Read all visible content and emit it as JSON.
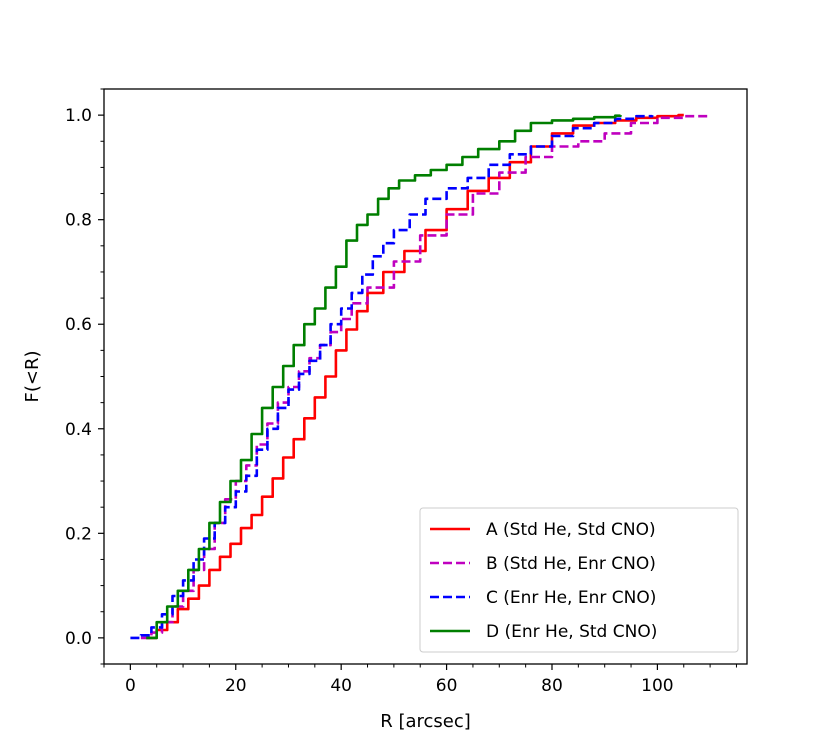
{
  "chart_data": {
    "type": "line",
    "title": "",
    "xlabel": "R [arcsec]",
    "ylabel": "F(<R)",
    "xlim": [
      -5,
      117
    ],
    "ylim": [
      -0.05,
      1.05
    ],
    "xticks": [
      0,
      20,
      40,
      60,
      80,
      100
    ],
    "yticks": [
      0.0,
      0.2,
      0.4,
      0.6,
      0.8,
      1.0
    ],
    "xtick_labels": [
      "0",
      "20",
      "40",
      "60",
      "80",
      "100"
    ],
    "ytick_labels": [
      "0.0",
      "0.2",
      "0.4",
      "0.6",
      "0.8",
      "1.0"
    ],
    "x_minor_step": 5,
    "y_minor_step": 0.05,
    "grid": false,
    "legend_position": "lower-right",
    "series": [
      {
        "name": "A (Std He, Std CNO)",
        "color": "#ff0000",
        "dash": "solid",
        "x": [
          3,
          5,
          7,
          9,
          11,
          13,
          15,
          17,
          19,
          21,
          23,
          25,
          27,
          29,
          31,
          33,
          35,
          37,
          39,
          41,
          43,
          45,
          48,
          52,
          56,
          60,
          64,
          68,
          72,
          76,
          80,
          84,
          88,
          92,
          96,
          100,
          104,
          105
        ],
        "y": [
          0.0,
          0.015,
          0.03,
          0.055,
          0.075,
          0.1,
          0.13,
          0.155,
          0.18,
          0.21,
          0.235,
          0.27,
          0.305,
          0.345,
          0.38,
          0.42,
          0.46,
          0.5,
          0.55,
          0.59,
          0.625,
          0.66,
          0.7,
          0.74,
          0.78,
          0.82,
          0.855,
          0.88,
          0.91,
          0.94,
          0.965,
          0.98,
          0.985,
          0.99,
          0.995,
          0.998,
          1.0,
          1.0
        ]
      },
      {
        "name": "B (Std He, Enr CNO)",
        "color": "#bf00bf",
        "dash": "dashed",
        "x": [
          2,
          4,
          6,
          8,
          10,
          12,
          14,
          16,
          18,
          20,
          22,
          24,
          26,
          28,
          30,
          32,
          34,
          36,
          38,
          40,
          42,
          45,
          50,
          55,
          60,
          65,
          70,
          75,
          80,
          85,
          90,
          95,
          100,
          105,
          110
        ],
        "y": [
          0.0,
          0.01,
          0.03,
          0.06,
          0.09,
          0.13,
          0.17,
          0.22,
          0.265,
          0.3,
          0.33,
          0.37,
          0.41,
          0.45,
          0.48,
          0.51,
          0.535,
          0.56,
          0.585,
          0.61,
          0.64,
          0.67,
          0.72,
          0.77,
          0.81,
          0.85,
          0.89,
          0.92,
          0.94,
          0.95,
          0.965,
          0.985,
          0.995,
          0.998,
          1.0
        ]
      },
      {
        "name": "C (Enr He, Enr CNO)",
        "color": "#0000ff",
        "dash": "dashed",
        "x": [
          0,
          2,
          4,
          6,
          8,
          10,
          12,
          14,
          16,
          18,
          20,
          22,
          24,
          26,
          28,
          30,
          32,
          34,
          36,
          38,
          40,
          42,
          44,
          46,
          48,
          50,
          53,
          56,
          60,
          64,
          68,
          72,
          76,
          80,
          84,
          88,
          92,
          96,
          99
        ],
        "y": [
          0.0,
          0.005,
          0.02,
          0.045,
          0.08,
          0.11,
          0.15,
          0.19,
          0.22,
          0.25,
          0.28,
          0.31,
          0.36,
          0.4,
          0.44,
          0.475,
          0.505,
          0.53,
          0.56,
          0.6,
          0.63,
          0.66,
          0.695,
          0.73,
          0.755,
          0.78,
          0.81,
          0.84,
          0.86,
          0.88,
          0.905,
          0.925,
          0.94,
          0.96,
          0.975,
          0.985,
          0.993,
          0.998,
          1.0
        ]
      },
      {
        "name": "D (Enr He, Std CNO)",
        "color": "#007f00",
        "dash": "solid",
        "x": [
          3,
          5,
          7,
          9,
          11,
          13,
          15,
          17,
          19,
          21,
          23,
          25,
          27,
          29,
          31,
          33,
          35,
          37,
          39,
          41,
          43,
          45,
          47,
          49,
          51,
          54,
          57,
          60,
          63,
          66,
          70,
          73,
          76,
          80,
          84,
          88,
          92,
          93
        ],
        "y": [
          0.0,
          0.03,
          0.06,
          0.09,
          0.13,
          0.17,
          0.22,
          0.26,
          0.3,
          0.34,
          0.39,
          0.44,
          0.48,
          0.52,
          0.56,
          0.6,
          0.63,
          0.67,
          0.71,
          0.76,
          0.79,
          0.81,
          0.84,
          0.86,
          0.875,
          0.885,
          0.895,
          0.905,
          0.92,
          0.935,
          0.95,
          0.97,
          0.985,
          0.99,
          0.993,
          0.996,
          0.999,
          1.0
        ]
      }
    ]
  }
}
